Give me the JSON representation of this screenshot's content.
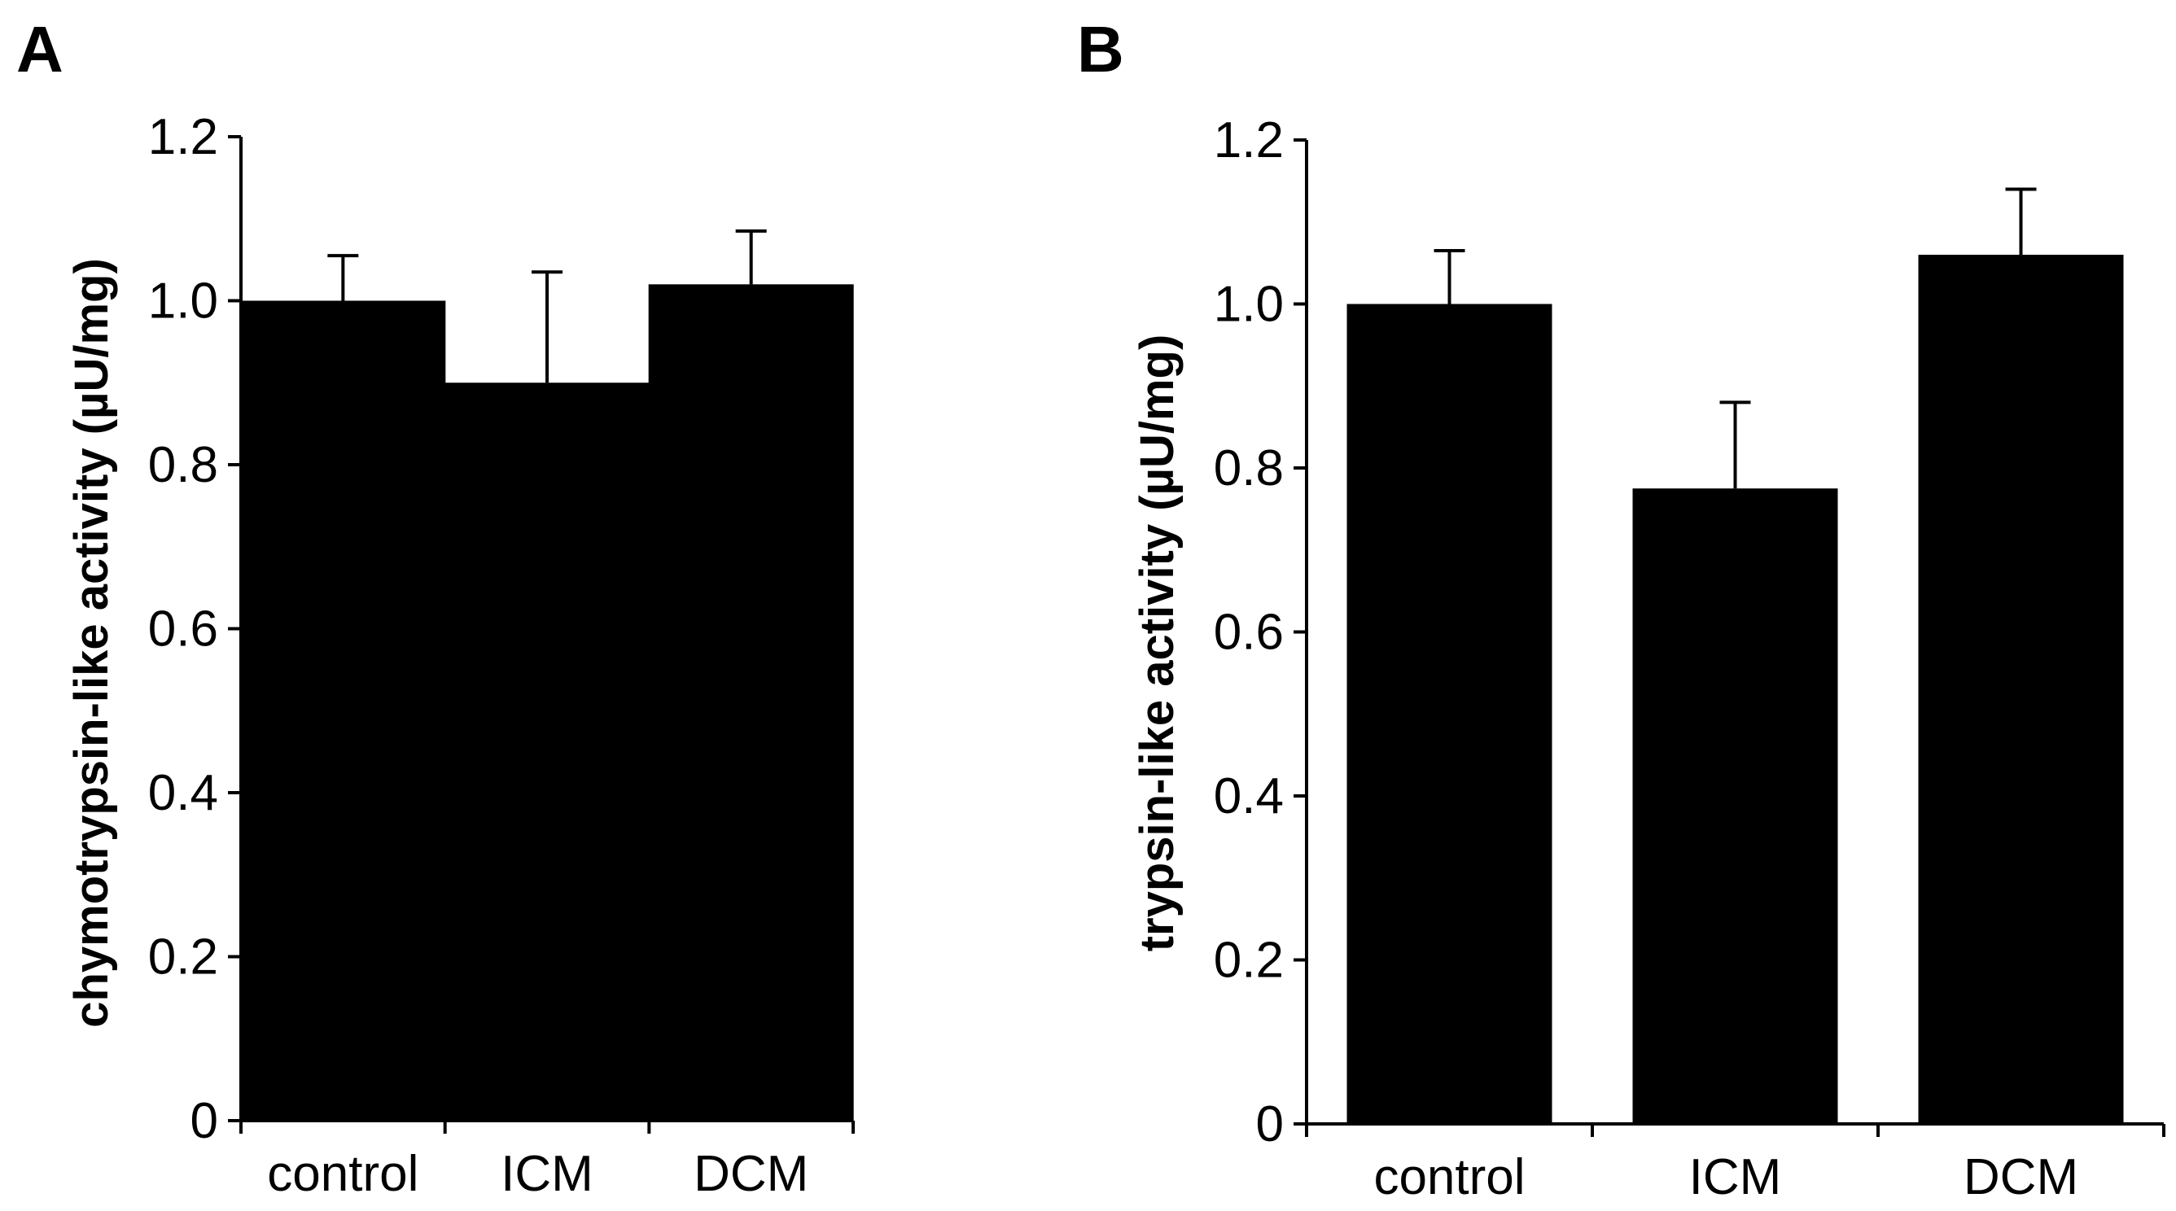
{
  "chart_data": [
    {
      "panel": "A",
      "type": "bar",
      "categories": [
        "control",
        "ICM",
        "DCM"
      ],
      "values": [
        1.0,
        0.9,
        1.02
      ],
      "errors": [
        0.055,
        0.135,
        0.065
      ],
      "yticks": [
        "0",
        "0.2",
        "0.4",
        "0.6",
        "0.8",
        "1.0",
        "1.2"
      ],
      "ylabel": "chymotrypsin-like activity (µU/mg)",
      "xlabel": "",
      "ylim": [
        0,
        1.2
      ],
      "grid": false,
      "color": "#000000"
    },
    {
      "panel": "B",
      "type": "bar",
      "categories": [
        "control",
        "ICM",
        "DCM"
      ],
      "values": [
        1.0,
        0.775,
        1.06
      ],
      "errors": [
        0.065,
        0.105,
        0.08
      ],
      "yticks": [
        "0",
        "0.2",
        "0.4",
        "0.6",
        "0.8",
        "1.0",
        "1.2"
      ],
      "ylabel": "trypsin-like activity (µU/mg)",
      "xlabel": "",
      "ylim": [
        0,
        1.2
      ],
      "grid": false,
      "color": "#000000"
    }
  ]
}
